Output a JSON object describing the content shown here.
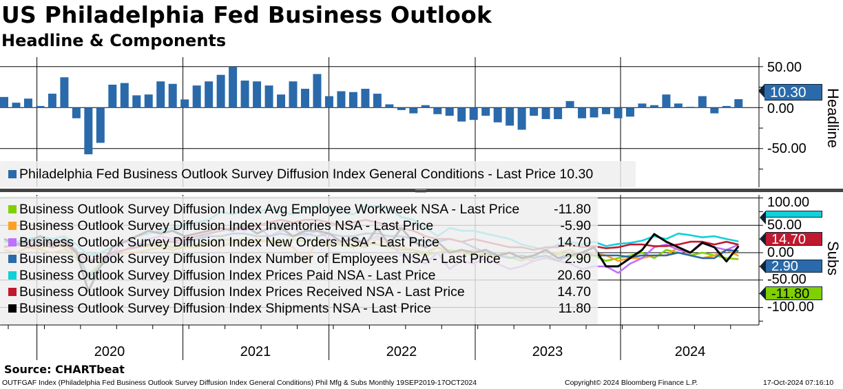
{
  "title": "US Philadelphia Fed Business Outlook",
  "subtitle": "Headline & Components",
  "chart_data": [
    {
      "type": "bar",
      "panel_label": "Headline",
      "x_range": "Sep 2019 - Oct 2024 (monthly)",
      "ylim": [
        -80,
        60
      ],
      "yticks": [
        "50.00",
        "0.00",
        "-50.00"
      ],
      "last_value_tag": "10.30",
      "color": "#2a6aaa",
      "legend": {
        "label": "Philadelphia Fed Business Outlook Survey Diffusion Index General Conditions - Last Price",
        "value": "10.30"
      },
      "values": [
        13,
        6,
        11,
        2,
        17,
        37,
        -13,
        -57,
        -43,
        28,
        30,
        15,
        16,
        32,
        29,
        10,
        27,
        32,
        40,
        50,
        33,
        32,
        27,
        16,
        32,
        23,
        41,
        14,
        20,
        19,
        23,
        17,
        4,
        -3,
        -7,
        3,
        -8,
        -10,
        -17,
        -15,
        -10,
        -18,
        -22,
        -27,
        -10,
        -14,
        -14,
        8,
        -13,
        -12,
        -8,
        -13,
        -11,
        5,
        3,
        16,
        5,
        1,
        14,
        -7,
        2,
        10.3
      ]
    },
    {
      "type": "line",
      "panel_label": "Subs",
      "x_range": "Sep 2019 - Oct 2024 (monthly)",
      "ylim": [
        -120,
        110
      ],
      "yticks": [
        "100.00",
        "50.00",
        "0.00",
        "-50.00",
        "-100.00"
      ],
      "series": [
        {
          "name": "Business Outlook Survey Diffusion Index Avg Employee Workweek NSA - Last Price",
          "last": "-11.80",
          "color": "#80d000",
          "values": [
            12,
            15,
            10,
            8,
            14,
            10,
            -10,
            -40,
            -20,
            0,
            5,
            10,
            12,
            15,
            10,
            12,
            15,
            18,
            25,
            22,
            25,
            20,
            22,
            20,
            25,
            20,
            25,
            18,
            15,
            10,
            18,
            15,
            10,
            5,
            5,
            -5,
            0,
            5,
            0,
            -5,
            -3,
            -5,
            -8,
            -15,
            -5,
            -8,
            -3,
            -5,
            -10,
            -5,
            -15,
            -10,
            -5,
            0,
            -10,
            5,
            0,
            -5,
            0,
            -5,
            -10,
            -11.8
          ]
        },
        {
          "name": "Business Outlook Survey Diffusion Index Inventories NSA - Last Price",
          "last": "-5.90",
          "color": "#ffa020",
          "values": [
            5,
            0,
            10,
            5,
            0,
            5,
            0,
            -15,
            -10,
            -5,
            0,
            0,
            5,
            10,
            5,
            10,
            10,
            15,
            10,
            20,
            15,
            25,
            20,
            15,
            10,
            -15,
            20,
            15,
            20,
            15,
            10,
            25,
            15,
            10,
            5,
            0,
            10,
            0,
            0,
            5,
            -5,
            -10,
            0,
            -10,
            -15,
            -10,
            0,
            5,
            -5,
            0,
            -5,
            -15,
            -10,
            -10,
            -5,
            -5,
            10,
            -5,
            -10,
            -5,
            5,
            -5.9
          ]
        },
        {
          "name": "Business Outlook Survey Diffusion Index New Orders NSA - Last Price",
          "last": "14.70",
          "color": "#c070ff",
          "values": [
            20,
            15,
            10,
            18,
            15,
            25,
            0,
            -70,
            -25,
            0,
            20,
            15,
            25,
            30,
            25,
            20,
            25,
            35,
            40,
            45,
            40,
            50,
            30,
            40,
            45,
            30,
            40,
            25,
            20,
            25,
            20,
            30,
            20,
            -5,
            -10,
            -20,
            0,
            -30,
            -15,
            -20,
            -10,
            -20,
            -30,
            -25,
            -15,
            -10,
            -15,
            -20,
            -30,
            -25,
            -25,
            -37,
            -20,
            -10,
            10,
            15,
            5,
            0,
            20,
            10,
            5,
            14.7
          ]
        },
        {
          "name": "Business Outlook Survey Diffusion Index Number of Employees NSA - Last Price",
          "last": "2.90",
          "color": "#2a6aaa",
          "values": [
            25,
            20,
            15,
            20,
            15,
            20,
            5,
            -45,
            -25,
            -5,
            5,
            15,
            15,
            20,
            20,
            15,
            25,
            30,
            30,
            35,
            35,
            30,
            30,
            35,
            30,
            35,
            30,
            35,
            30,
            30,
            35,
            35,
            30,
            30,
            25,
            20,
            20,
            25,
            20,
            10,
            0,
            -5,
            -10,
            -5,
            -10,
            -5,
            -15,
            -5,
            0,
            -5,
            -5,
            -5,
            -8,
            -5,
            -5,
            -5,
            0,
            -5,
            -10,
            -10,
            5,
            2.9
          ]
        },
        {
          "name": "Business Outlook Survey Diffusion Index Prices Paid NSA - Last Price",
          "last": "20.60",
          "color": "#10d0d8",
          "values": [
            20,
            20,
            25,
            30,
            25,
            30,
            15,
            -5,
            0,
            10,
            20,
            30,
            35,
            40,
            45,
            50,
            55,
            60,
            75,
            70,
            80,
            75,
            80,
            75,
            70,
            80,
            85,
            80,
            75,
            70,
            85,
            85,
            80,
            65,
            60,
            45,
            30,
            45,
            40,
            40,
            35,
            30,
            25,
            15,
            10,
            5,
            15,
            20,
            15,
            20,
            12,
            16,
            18,
            22,
            30,
            25,
            35,
            32,
            28,
            30,
            25,
            20.6
          ]
        },
        {
          "name": "Business Outlook Survey Diffusion Index Prices Received NSA - Last Price",
          "last": "14.70",
          "color": "#c0182e",
          "values": [
            10,
            15,
            10,
            15,
            10,
            15,
            0,
            -15,
            -10,
            0,
            5,
            10,
            15,
            20,
            20,
            25,
            30,
            35,
            40,
            45,
            45,
            50,
            55,
            60,
            55,
            60,
            60,
            55,
            50,
            55,
            60,
            55,
            50,
            45,
            40,
            30,
            25,
            25,
            20,
            25,
            20,
            15,
            10,
            10,
            5,
            10,
            10,
            15,
            10,
            12,
            8,
            10,
            15,
            15,
            12,
            12,
            15,
            20,
            20,
            15,
            20,
            14.7
          ]
        },
        {
          "name": "Business Outlook Survey Diffusion Index Shipments NSA - Last Price",
          "last": "11.80",
          "color": "#000000",
          "values": [
            25,
            15,
            20,
            30,
            15,
            25,
            0,
            -70,
            -25,
            10,
            20,
            30,
            40,
            35,
            40,
            30,
            35,
            40,
            45,
            40,
            50,
            35,
            45,
            45,
            30,
            40,
            40,
            35,
            20,
            25,
            15,
            45,
            15,
            45,
            20,
            10,
            20,
            0,
            5,
            0,
            5,
            -5,
            0,
            -10,
            -5,
            5,
            -10,
            -5,
            0,
            10,
            -25,
            -25,
            -10,
            5,
            34,
            20,
            10,
            0,
            18,
            10,
            -16,
            11.8
          ]
        }
      ]
    }
  ],
  "x_axis": {
    "years": [
      "2020",
      "2021",
      "2022",
      "2023",
      "2024"
    ]
  },
  "footer": {
    "source": "Source: CHARTbeat",
    "description": "OUTFGAF Index (Philadelphia Fed Business Outlook Survey Diffusion Index General Conditions) Phil Mfg & Subs  Monthly 19SEP2019-17OCT2024",
    "copyright": "Copyright© 2024 Bloomberg Finance L.P.",
    "timestamp": "17-Oct-2024 07:16:10"
  }
}
